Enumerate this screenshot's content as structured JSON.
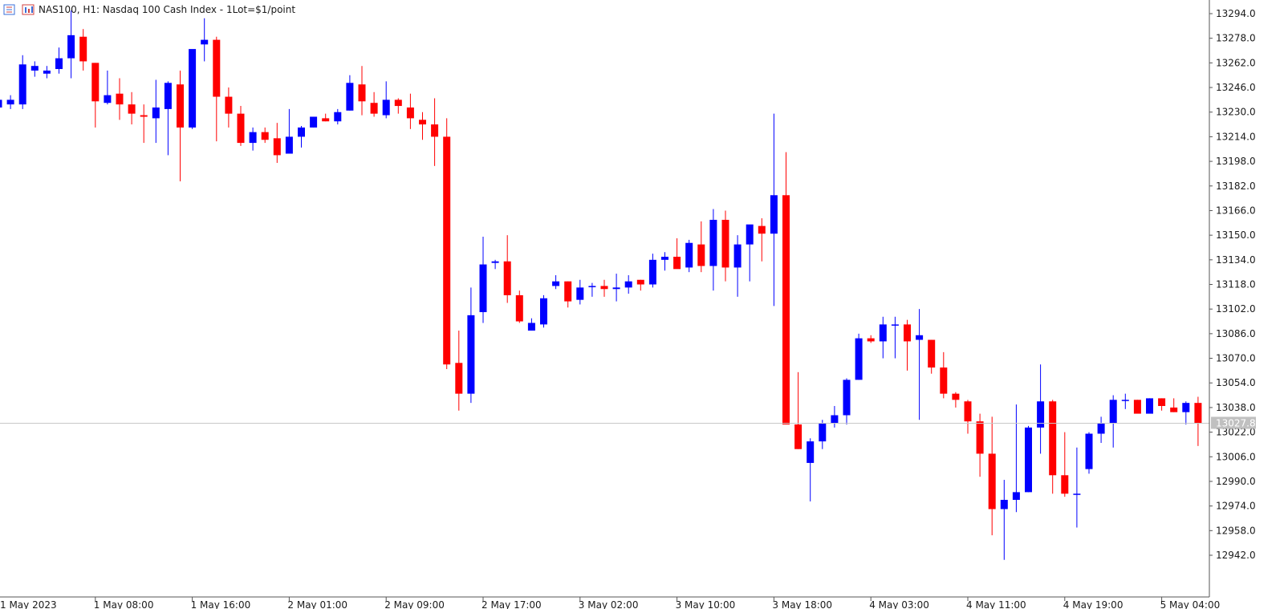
{
  "header": {
    "title": "NAS100, H1:  Nasdaq 100 Cash Index - 1Lot=$1/point",
    "icons": [
      "chart-grid-icon",
      "chart-bars-icon"
    ]
  },
  "colors": {
    "bull": "#0000ff",
    "bear": "#ff0000",
    "axis": "#555555",
    "current_line": "#c8c8c8",
    "current_tag": "#c0c0c0"
  },
  "chart_data": {
    "type": "candlestick",
    "symbol": "NAS100",
    "timeframe": "H1",
    "y_ticks": [
      13294.0,
      13278.0,
      13262.0,
      13246.0,
      13230.0,
      13214.0,
      13198.0,
      13182.0,
      13166.0,
      13150.0,
      13134.0,
      13118.0,
      13102.0,
      13086.0,
      13070.0,
      13054.0,
      13038.0,
      13022.0,
      13006.0,
      12990.0,
      12974.0,
      12958.0,
      12942.0
    ],
    "y_tick_labels": [
      "13294.0",
      "13278.0",
      "13262.0",
      "13246.0",
      "13230.0",
      "13214.0",
      "13198.0",
      "13182.0",
      "13166.0",
      "13150.0",
      "13134.0",
      "13118.0",
      "13102.0",
      "13086.0",
      "13070.0",
      "13054.0",
      "13038.0",
      "13022.0",
      "13006.0",
      "12990.0",
      "12974.0",
      "12958.0",
      "12942.0"
    ],
    "x_labels": [
      {
        "index": 0,
        "label": "1 May 2023"
      },
      {
        "index": 8,
        "label": "1 May 08:00"
      },
      {
        "index": 16,
        "label": "1 May 16:00"
      },
      {
        "index": 24,
        "label": "2 May 01:00"
      },
      {
        "index": 32,
        "label": "2 May 09:00"
      },
      {
        "index": 40,
        "label": "2 May 17:00"
      },
      {
        "index": 48,
        "label": "3 May 02:00"
      },
      {
        "index": 56,
        "label": "3 May 10:00"
      },
      {
        "index": 64,
        "label": "3 May 18:00"
      },
      {
        "index": 72,
        "label": "4 May 03:00"
      },
      {
        "index": 80,
        "label": "4 May 11:00"
      },
      {
        "index": 88,
        "label": "4 May 19:00"
      },
      {
        "index": 96,
        "label": "5 May 04:00"
      }
    ],
    "current_price": 13027.8,
    "current_price_label": "13027.8",
    "candles": [
      [
        13233,
        13241,
        13230,
        13238
      ],
      [
        13235,
        13241,
        13232,
        13238
      ],
      [
        13235,
        13267,
        13232,
        13261
      ],
      [
        13257,
        13263,
        13253,
        13260
      ],
      [
        13255,
        13260,
        13252,
        13257
      ],
      [
        13258,
        13272,
        13255,
        13265
      ],
      [
        13265,
        13296,
        13252,
        13280
      ],
      [
        13279,
        13284,
        13257,
        13263
      ],
      [
        13262,
        13262,
        13220,
        13237
      ],
      [
        13236,
        13257,
        13235,
        13241
      ],
      [
        13242,
        13252,
        13225,
        13235
      ],
      [
        13235,
        13243,
        13222,
        13229
      ],
      [
        13228,
        13235,
        13210,
        13227
      ],
      [
        13226,
        13251,
        13210,
        13233
      ],
      [
        13232,
        13250,
        13202,
        13249
      ],
      [
        13248,
        13257,
        13185,
        13220
      ],
      [
        13220,
        13268,
        13219,
        13271
      ],
      [
        13274,
        13291,
        13263,
        13277
      ],
      [
        13277,
        13279,
        13211,
        13240
      ],
      [
        13240,
        13246,
        13220,
        13229
      ],
      [
        13229,
        13234,
        13208,
        13210
      ],
      [
        13210,
        13220,
        13205,
        13217
      ],
      [
        13217,
        13220,
        13210,
        13212
      ],
      [
        13213,
        13223,
        13197,
        13202
      ],
      [
        13203,
        13232,
        13203,
        13214
      ],
      [
        13214,
        13221,
        13207,
        13220
      ],
      [
        13220,
        13227,
        13220,
        13227
      ],
      [
        13226,
        13229,
        13224,
        13224
      ],
      [
        13224,
        13232,
        13222,
        13230
      ],
      [
        13231,
        13254,
        13231,
        13249
      ],
      [
        13248,
        13260,
        13228,
        13237
      ],
      [
        13236,
        13243,
        13227,
        13229
      ],
      [
        13228,
        13250,
        13226,
        13238
      ],
      [
        13238,
        13239,
        13229,
        13234
      ],
      [
        13233,
        13242,
        13219,
        13226
      ],
      [
        13225,
        13230,
        13212,
        13222
      ],
      [
        13222,
        13239,
        13195,
        13214
      ],
      [
        13214,
        13226,
        13063,
        13066
      ],
      [
        13067,
        13088,
        13036,
        13047
      ],
      [
        13047,
        13116,
        13041,
        13098
      ],
      [
        13100,
        13149,
        13093,
        13131
      ],
      [
        13132,
        13134,
        13128,
        13133
      ],
      [
        13133,
        13150,
        13106,
        13111
      ],
      [
        13111,
        13114,
        13093,
        13094
      ],
      [
        13088,
        13096,
        13088,
        13093
      ],
      [
        13092,
        13111,
        13090,
        13109
      ],
      [
        13117,
        13124,
        13115,
        13120
      ],
      [
        13120,
        13120,
        13103,
        13107
      ],
      [
        13108,
        13121,
        13105,
        13116
      ],
      [
        13117,
        13119,
        13110,
        13117
      ],
      [
        13117,
        13121,
        13110,
        13115
      ],
      [
        13115,
        13125,
        13107,
        13116
      ],
      [
        13116,
        13124,
        13112,
        13120
      ],
      [
        13121,
        13121,
        13114,
        13118
      ],
      [
        13118,
        13138,
        13116,
        13134
      ],
      [
        13134,
        13139,
        13127,
        13136
      ],
      [
        13136,
        13148,
        13130,
        13128
      ],
      [
        13129,
        13147,
        13126,
        13145
      ],
      [
        13144,
        13159,
        13126,
        13130
      ],
      [
        13130,
        13167,
        13114,
        13160
      ],
      [
        13160,
        13166,
        13120,
        13129
      ],
      [
        13129,
        13150,
        13110,
        13144
      ],
      [
        13144,
        13156,
        13120,
        13157
      ],
      [
        13156,
        13161,
        13133,
        13151
      ],
      [
        13151,
        13229,
        13104,
        13176
      ],
      [
        13176,
        13204,
        13030,
        13027
      ],
      [
        13027,
        13061,
        13011,
        13011
      ],
      [
        13002,
        13018,
        12977,
        13016
      ],
      [
        13016,
        13030,
        13011,
        13028
      ],
      [
        13028,
        13039,
        13025,
        13033
      ],
      [
        13033,
        13057,
        13027,
        13056
      ],
      [
        13056,
        13086,
        13056,
        13083
      ],
      [
        13083,
        13085,
        13080,
        13081
      ],
      [
        13081,
        13097,
        13070,
        13092
      ],
      [
        13092,
        13097,
        13070,
        13092
      ],
      [
        13092,
        13095,
        13062,
        13081
      ],
      [
        13082,
        13102,
        13030,
        13085
      ],
      [
        13082,
        13082,
        13060,
        13064
      ],
      [
        13064,
        13074,
        13044,
        13047
      ],
      [
        13047,
        13048,
        13038,
        13043
      ],
      [
        13042,
        13043,
        13021,
        13029
      ],
      [
        13029,
        13034,
        12993,
        13008
      ],
      [
        13008,
        13032,
        12955,
        12972
      ],
      [
        12972,
        12991,
        12939,
        12978
      ],
      [
        12978,
        13040,
        12970,
        12983
      ],
      [
        12983,
        13026,
        12983,
        13025
      ],
      [
        13025,
        13066,
        13008,
        13042
      ],
      [
        13042,
        13043,
        12982,
        12994
      ],
      [
        12994,
        13022,
        12980,
        12982
      ],
      [
        12982,
        13012,
        12960,
        12982
      ],
      [
        12998,
        13022,
        12995,
        13021
      ],
      [
        13021,
        13032,
        13015,
        13028
      ],
      [
        13028,
        13046,
        13012,
        13043
      ],
      [
        13043,
        13047,
        13037,
        13043
      ],
      [
        13043,
        13043,
        13036,
        13034
      ],
      [
        13034,
        13044,
        13035,
        13044
      ],
      [
        13044,
        13044,
        13036,
        13039
      ],
      [
        13038,
        13044,
        13035,
        13035
      ],
      [
        13035,
        13042,
        13027,
        13041
      ],
      [
        13041,
        13045,
        13013,
        13028
      ]
    ]
  }
}
